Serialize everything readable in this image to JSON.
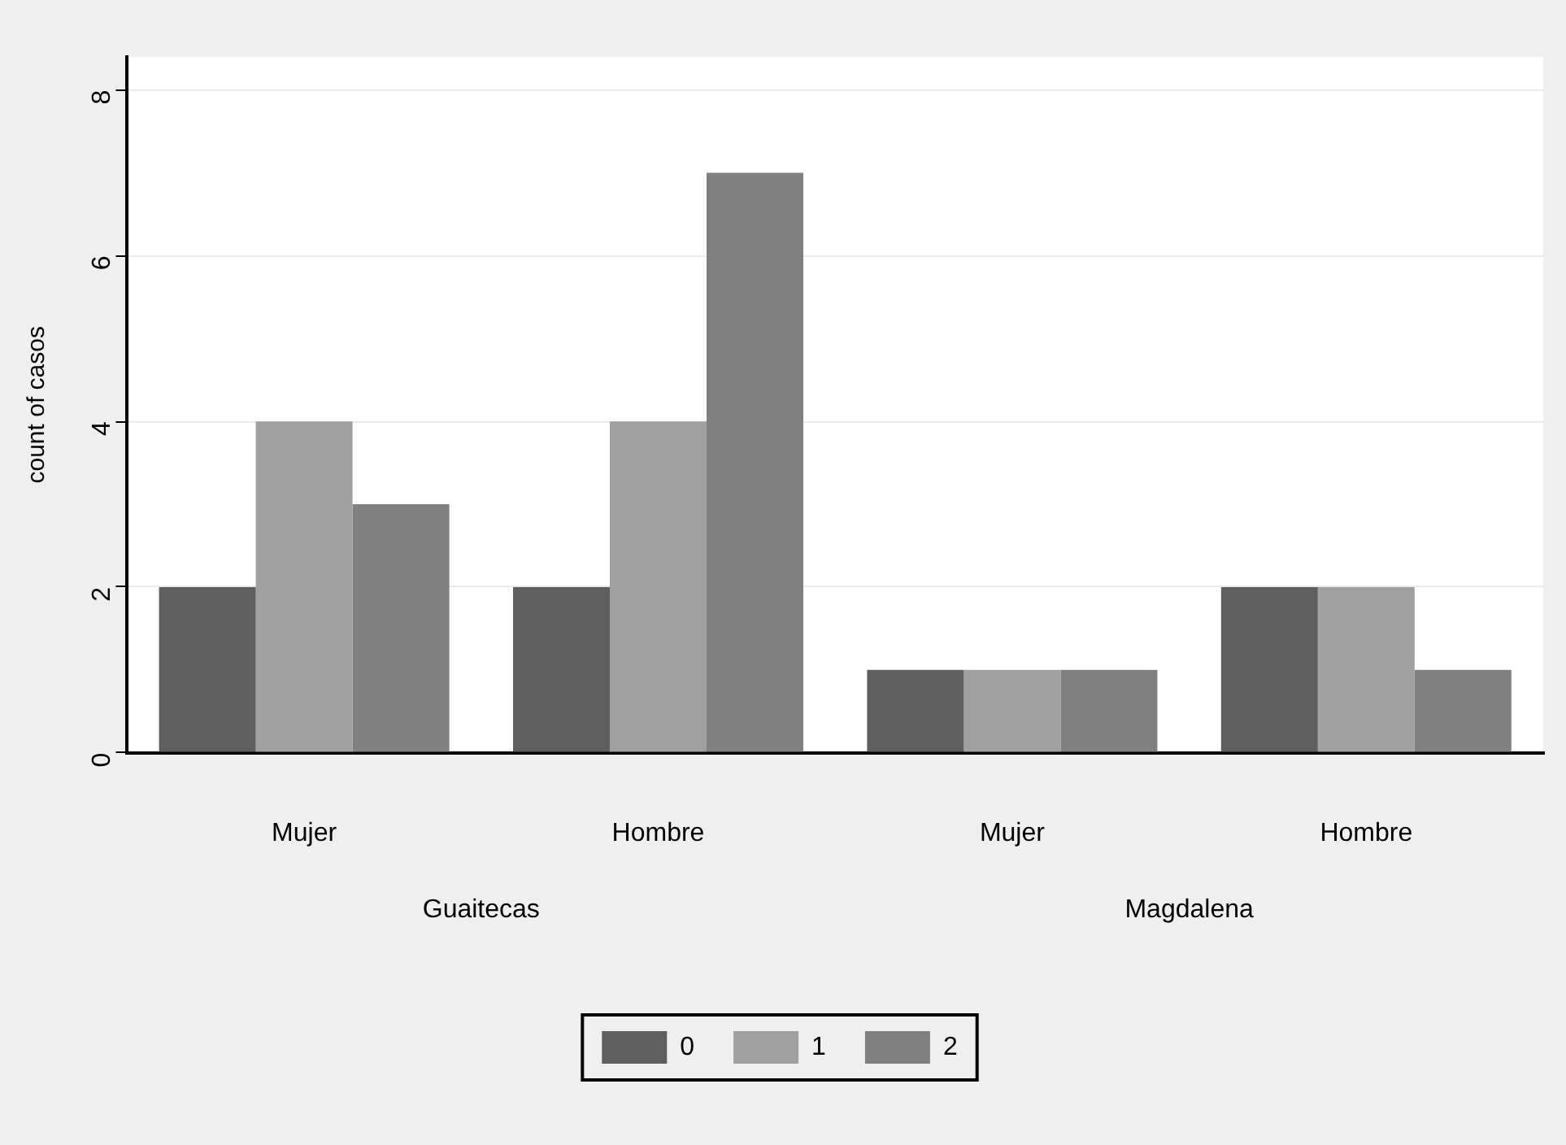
{
  "chart_data": {
    "type": "bar",
    "ylabel": "count of casos",
    "categories": [
      "Mujer",
      "Hombre",
      "Mujer",
      "Hombre"
    ],
    "series": [
      {
        "name": "0",
        "color": "#5f5f5f",
        "values": [
          2,
          2,
          1,
          2
        ]
      },
      {
        "name": "1",
        "color": "#a0a0a0",
        "values": [
          4,
          4,
          1,
          2
        ]
      },
      {
        "name": "2",
        "color": "#808080",
        "values": [
          3,
          7,
          1,
          1
        ]
      }
    ],
    "annotations": [
      "Guaitecas",
      "Magdalena"
    ],
    "ylim": [
      0,
      8.4
    ],
    "yticks": [
      0,
      2,
      4,
      6,
      8
    ],
    "grid": "y",
    "legend": "bottom"
  }
}
